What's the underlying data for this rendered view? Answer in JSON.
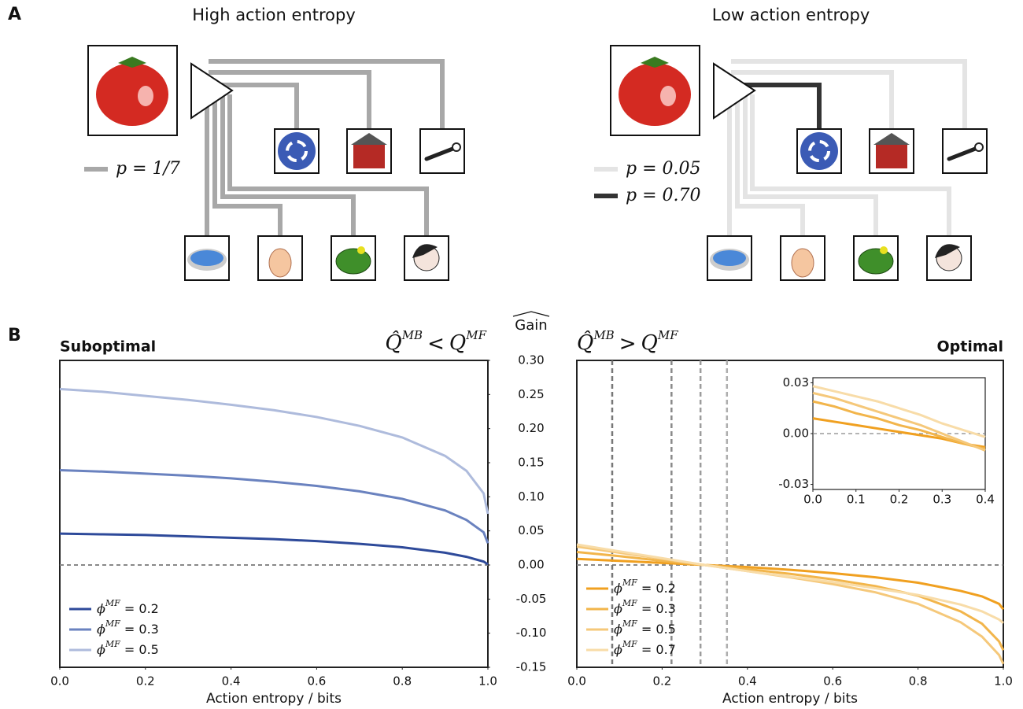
{
  "panel_labels": [
    "A",
    "B"
  ],
  "diagrams": [
    {
      "title": "High action entropy",
      "legend": [
        {
          "text": "p = 1/7",
          "color": "#a8a8a8"
        }
      ]
    },
    {
      "title": "Low action entropy",
      "legend": [
        {
          "text": "p = 0.05",
          "color": "#e4e4e4"
        },
        {
          "text": "p = 0.70",
          "color": "#333333"
        }
      ]
    }
  ],
  "shared_axis_label": "Gain",
  "chart_data": [
    {
      "type": "line",
      "title": "Suboptimal",
      "title_color": "#3653a3",
      "condition": {
        "left": "Q̂",
        "left_sup": "MB",
        "op": "<",
        "right": "Q",
        "right_sup": "MF"
      },
      "xlabel": "Action entropy / bits",
      "x": [
        0,
        0.1,
        0.2,
        0.3,
        0.4,
        0.5,
        0.6,
        0.7,
        0.8,
        0.9,
        0.95,
        0.99,
        1.0
      ],
      "legend_symbol": {
        "symbol": "ϕ",
        "sup": "MF",
        "eq": " = "
      },
      "series": [
        {
          "name": "0.2",
          "color": "#2e4a9a",
          "values": [
            0.046,
            0.045,
            0.044,
            0.042,
            0.04,
            0.038,
            0.035,
            0.031,
            0.026,
            0.018,
            0.012,
            0.005,
            0.001
          ]
        },
        {
          "name": "0.3",
          "color": "#6a82bf",
          "values": [
            0.139,
            0.137,
            0.134,
            0.131,
            0.127,
            0.122,
            0.116,
            0.108,
            0.097,
            0.08,
            0.066,
            0.048,
            0.032
          ]
        },
        {
          "name": "0.5",
          "color": "#aebbdc",
          "values": [
            0.258,
            0.254,
            0.248,
            0.242,
            0.235,
            0.227,
            0.217,
            0.204,
            0.187,
            0.16,
            0.138,
            0.105,
            0.075
          ]
        }
      ],
      "hline": 0,
      "xlim": [
        0,
        1
      ],
      "ylim": [
        -0.15,
        0.3
      ],
      "xticks": [
        {
          "value": 0,
          "label": "0.0"
        },
        0.2,
        0.4,
        0.6,
        0.8,
        {
          "value": 1,
          "label": "1.0"
        }
      ],
      "yticks": [
        {
          "value": 0.3,
          "label": "0.30"
        },
        0.25,
        {
          "value": 0.2,
          "label": "0.20"
        },
        0.15,
        {
          "value": 0.1,
          "label": "0.10"
        },
        0.05,
        {
          "value": 0,
          "label": "0.00"
        },
        -0.05,
        {
          "value": -0.1,
          "label": "-0.10"
        },
        -0.15
      ]
    },
    {
      "type": "line",
      "title": "Optimal",
      "title_color": "#f0a020",
      "condition": {
        "left": "Q̂",
        "left_sup": "MB",
        "op": ">",
        "right": "Q",
        "right_sup": "MF"
      },
      "xlabel": "Action entropy / bits",
      "x": [
        0,
        0.1,
        0.2,
        0.3,
        0.4,
        0.5,
        0.6,
        0.7,
        0.8,
        0.9,
        0.95,
        0.99,
        1.0
      ],
      "legend_symbol": {
        "symbol": "ϕ",
        "sup": "MF",
        "eq": " = "
      },
      "series": [
        {
          "name": "0.2",
          "color": "#f0a020",
          "values": [
            0.009,
            0.006,
            0.003,
            0.0,
            -0.003,
            -0.007,
            -0.012,
            -0.018,
            -0.026,
            -0.038,
            -0.046,
            -0.057,
            -0.065
          ]
        },
        {
          "name": "0.3",
          "color": "#f2b54b",
          "values": [
            0.019,
            0.013,
            0.006,
            0.0,
            -0.006,
            -0.013,
            -0.021,
            -0.031,
            -0.045,
            -0.068,
            -0.086,
            -0.112,
            -0.125
          ]
        },
        {
          "name": "0.5",
          "color": "#f5c87a",
          "values": [
            0.027,
            0.018,
            0.009,
            0.0,
            -0.009,
            -0.018,
            -0.028,
            -0.04,
            -0.057,
            -0.084,
            -0.105,
            -0.132,
            -0.145
          ]
        },
        {
          "name": "0.7",
          "color": "#f8dca8",
          "values": [
            0.03,
            0.02,
            0.01,
            0.0,
            -0.009,
            -0.017,
            -0.025,
            -0.034,
            -0.044,
            -0.058,
            -0.068,
            -0.08,
            -0.085
          ]
        }
      ],
      "hline": 0,
      "vlines": [
        0.083,
        0.222,
        0.29,
        0.352
      ],
      "xlim": [
        0,
        1
      ],
      "ylim": [
        -0.15,
        0.3
      ],
      "xticks": [
        {
          "value": 0,
          "label": "0.0"
        },
        0.2,
        0.4,
        0.6,
        0.8,
        {
          "value": 1,
          "label": "1.0"
        }
      ],
      "inset": {
        "type": "line",
        "x": [
          0,
          0.05,
          0.1,
          0.15,
          0.2,
          0.25,
          0.3,
          0.35,
          0.4
        ],
        "series": [
          {
            "color": "#f0a020",
            "values": [
              0.009,
              0.007,
              0.005,
              0.003,
              0.001,
              -0.001,
              -0.003,
              -0.006,
              -0.008
            ]
          },
          {
            "color": "#f2b54b",
            "values": [
              0.019,
              0.016,
              0.012,
              0.009,
              0.005,
              0.002,
              -0.002,
              -0.006,
              -0.009
            ]
          },
          {
            "color": "#f5c87a",
            "values": [
              0.024,
              0.021,
              0.017,
              0.013,
              0.009,
              0.005,
              0.0,
              -0.005,
              -0.01
            ]
          },
          {
            "color": "#f8dca8",
            "values": [
              0.028,
              0.025,
              0.022,
              0.019,
              0.015,
              0.011,
              0.006,
              0.002,
              -0.002
            ]
          }
        ],
        "hline": 0,
        "xlim": [
          0,
          0.4
        ],
        "ylim": [
          -0.033,
          0.033
        ],
        "xticks": [
          {
            "value": 0,
            "label": "0.0"
          },
          0.1,
          0.2,
          0.3,
          0.4
        ],
        "yticks": [
          {
            "value": 0.03,
            "label": "0.03"
          },
          {
            "value": 0,
            "label": "0.00"
          },
          -0.03
        ]
      }
    }
  ]
}
